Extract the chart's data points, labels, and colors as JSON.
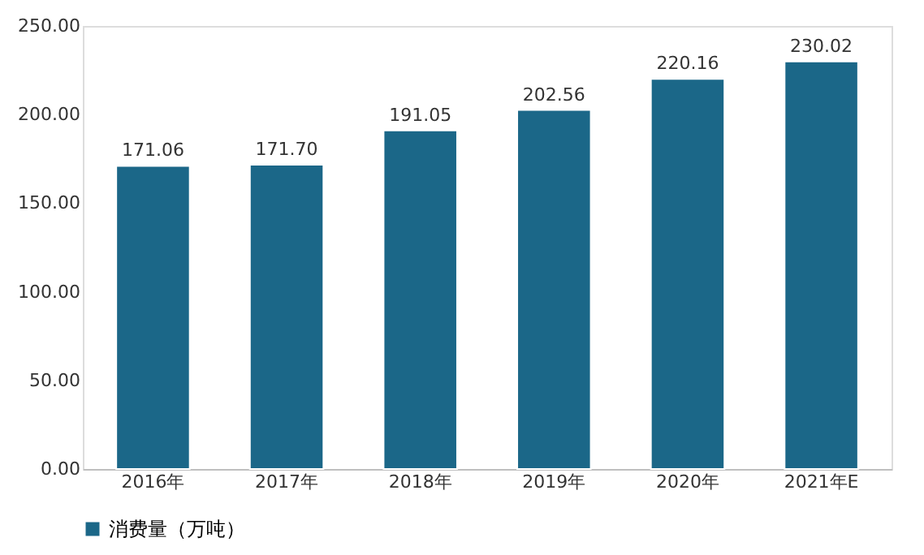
{
  "chart_data": {
    "type": "bar",
    "categories": [
      "2016年",
      "2017年",
      "2018年",
      "2019年",
      "2020年",
      "2021年E"
    ],
    "series": [
      {
        "name": "消费量（万吨）",
        "color": "#1b6788",
        "values": [
          171.06,
          171.7,
          191.05,
          202.56,
          220.16,
          230.02
        ],
        "value_labels": [
          "171.06",
          "171.70",
          "191.05",
          "202.56",
          "220.16",
          "230.02"
        ]
      }
    ],
    "ylim": [
      0,
      250
    ],
    "yticks": [
      {
        "value": 0,
        "label": "0.00"
      },
      {
        "value": 50,
        "label": "50.00"
      },
      {
        "value": 100,
        "label": "100.00"
      },
      {
        "value": 150,
        "label": "150.00"
      },
      {
        "value": 200,
        "label": "200.00"
      },
      {
        "value": 250,
        "label": "250.00"
      }
    ],
    "grid": false,
    "legend": "bottom"
  }
}
